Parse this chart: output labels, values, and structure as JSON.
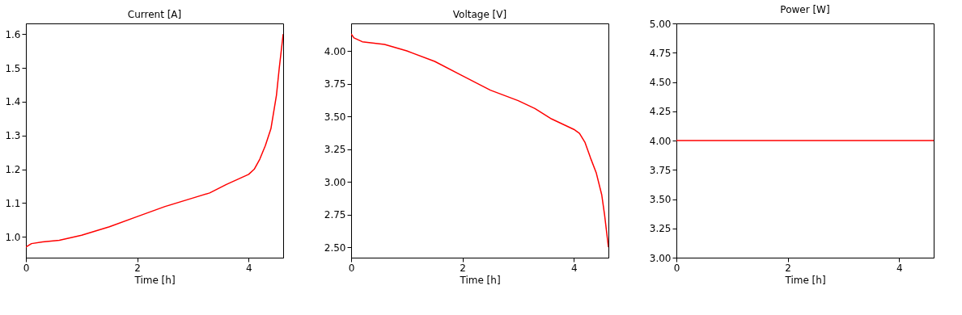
{
  "chart_data": [
    {
      "type": "line",
      "title": "Current [A]",
      "xlabel": "Time [h]",
      "xlim": [
        0,
        4.62
      ],
      "xticks": [
        0,
        2,
        4
      ],
      "ylim": [
        0.9385,
        1.6315
      ],
      "yticks": [
        {
          "value": 1.0,
          "label": "1.0"
        },
        {
          "value": 1.1,
          "label": "1.1"
        },
        {
          "value": 1.2,
          "label": "1.2"
        },
        {
          "value": 1.3,
          "label": "1.3"
        },
        {
          "value": 1.4,
          "label": "1.4"
        },
        {
          "value": 1.5,
          "label": "1.5"
        },
        {
          "value": 1.6,
          "label": "1.6"
        }
      ],
      "grid": false,
      "series": [
        {
          "color": "#ff0000",
          "x": [
            0,
            0.1,
            0.3,
            0.6,
            1,
            1.5,
            2,
            2.5,
            3,
            3.3,
            3.6,
            4,
            4.1,
            4.2,
            4.3,
            4.4,
            4.5,
            4.55,
            4.62
          ],
          "values": [
            0.97,
            0.98,
            0.985,
            0.99,
            1.005,
            1.03,
            1.06,
            1.09,
            1.115,
            1.13,
            1.155,
            1.185,
            1.2,
            1.23,
            1.27,
            1.32,
            1.42,
            1.5,
            1.6
          ]
        }
      ]
    },
    {
      "type": "line",
      "title": "Voltage [V]",
      "xlabel": "Time [h]",
      "xlim": [
        0,
        4.62
      ],
      "xticks": [
        0,
        2,
        4
      ],
      "ylim": [
        2.42,
        4.21
      ],
      "yticks": [
        {
          "value": 2.5,
          "label": "2.50"
        },
        {
          "value": 2.75,
          "label": "2.75"
        },
        {
          "value": 3.0,
          "label": "3.00"
        },
        {
          "value": 3.25,
          "label": "3.25"
        },
        {
          "value": 3.5,
          "label": "3.50"
        },
        {
          "value": 3.75,
          "label": "3.75"
        },
        {
          "value": 4.0,
          "label": "4.00"
        }
      ],
      "grid": false,
      "series": [
        {
          "color": "#ff0000",
          "x": [
            0,
            0.05,
            0.2,
            0.6,
            1,
            1.5,
            2,
            2.5,
            3,
            3.3,
            3.6,
            4,
            4.1,
            4.2,
            4.3,
            4.4,
            4.5,
            4.55,
            4.62
          ],
          "values": [
            4.13,
            4.1,
            4.07,
            4.05,
            4.0,
            3.92,
            3.81,
            3.7,
            3.62,
            3.56,
            3.48,
            3.4,
            3.37,
            3.3,
            3.18,
            3.07,
            2.9,
            2.75,
            2.5
          ]
        }
      ]
    },
    {
      "type": "line",
      "title": "Power [W]",
      "xlabel": "Time [h]",
      "xlim": [
        0,
        4.62
      ],
      "xticks": [
        0,
        2,
        4
      ],
      "ylim": [
        3,
        5
      ],
      "yticks": [
        {
          "value": 3.0,
          "label": "3.00"
        },
        {
          "value": 3.25,
          "label": "3.25"
        },
        {
          "value": 3.5,
          "label": "3.50"
        },
        {
          "value": 3.75,
          "label": "3.75"
        },
        {
          "value": 4.0,
          "label": "4.00"
        },
        {
          "value": 4.25,
          "label": "4.25"
        },
        {
          "value": 4.5,
          "label": "4.50"
        },
        {
          "value": 4.75,
          "label": "4.75"
        },
        {
          "value": 5.0,
          "label": "5.00"
        }
      ],
      "grid": false,
      "series": [
        {
          "color": "#ff0000",
          "x": [
            0,
            4.62
          ],
          "values": [
            4,
            4
          ]
        }
      ]
    }
  ]
}
